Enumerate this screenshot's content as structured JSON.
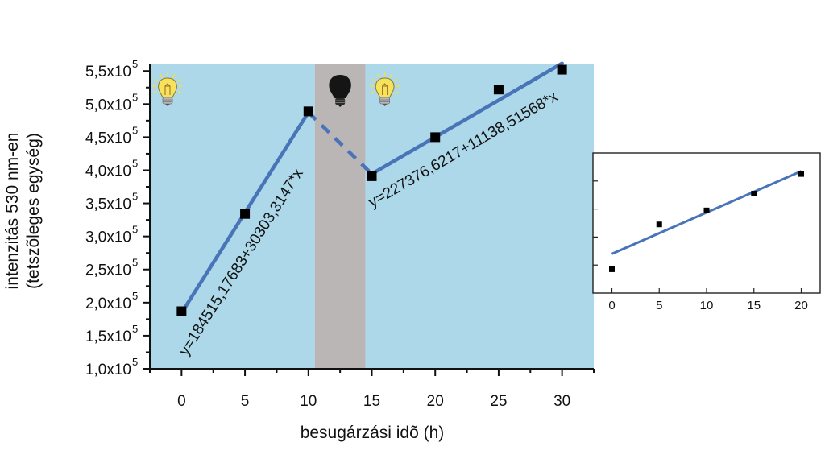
{
  "chart_data": [
    {
      "type": "scatter",
      "title": "",
      "xlabel": "besugárzási idõ (h)",
      "ylabel_line1": "intenzitás 530 nm-en",
      "ylabel_line2": "(tetszõleges egység)",
      "xlim": [
        -2.5,
        32.5
      ],
      "ylim": [
        100000,
        560000
      ],
      "xticks": [
        0,
        5,
        10,
        15,
        20,
        25,
        30
      ],
      "yticks": [
        {
          "value": 100000,
          "mantissa": "1,0x10",
          "exp": "5"
        },
        {
          "value": 150000,
          "mantissa": "1,5x10",
          "exp": "5"
        },
        {
          "value": 200000,
          "mantissa": "2,0x10",
          "exp": "5"
        },
        {
          "value": 250000,
          "mantissa": "2,5x10",
          "exp": "5"
        },
        {
          "value": 300000,
          "mantissa": "3,0x10",
          "exp": "5"
        },
        {
          "value": 350000,
          "mantissa": "3,5x10",
          "exp": "5"
        },
        {
          "value": 400000,
          "mantissa": "4,0x10",
          "exp": "5"
        },
        {
          "value": 450000,
          "mantissa": "4,5x10",
          "exp": "5"
        },
        {
          "value": 500000,
          "mantissa": "5,0x10",
          "exp": "5"
        },
        {
          "value": 550000,
          "mantissa": "5,5x10",
          "exp": "5"
        }
      ],
      "regions": [
        {
          "x0": -2.5,
          "x1": 10.5,
          "color": "#acd8ea",
          "icon": "light-bulb-on-icon"
        },
        {
          "x0": 10.5,
          "x1": 14.5,
          "color": "#bbb6b6",
          "icon": "light-bulb-off-icon"
        },
        {
          "x0": 14.5,
          "x1": 32.5,
          "color": "#acd8ea",
          "icon": "light-bulb-on-icon"
        }
      ],
      "points": [
        {
          "x": 0,
          "y": 187000
        },
        {
          "x": 5,
          "y": 334000
        },
        {
          "x": 10,
          "y": 489000
        },
        {
          "x": 15,
          "y": 391000
        },
        {
          "x": 20,
          "y": 450000
        },
        {
          "x": 25,
          "y": 522000
        },
        {
          "x": 30,
          "y": 552000
        }
      ],
      "fits": [
        {
          "x": [
            0,
            10
          ],
          "y": [
            184515,
            487548
          ],
          "style": "solid",
          "equation": "y=184515,17683+30303,3147*x"
        },
        {
          "x": [
            10,
            15
          ],
          "y": [
            487548,
            394459
          ],
          "style": "dashed",
          "equation": ""
        },
        {
          "x": [
            15,
            30
          ],
          "y": [
            394459,
            561536
          ],
          "style": "solid",
          "equation": "y=227376,6217+11138,51568*x"
        }
      ],
      "point_color": "#000000",
      "line_color": "#4a74b8",
      "grid": false
    },
    {
      "type": "scatter",
      "title": "",
      "xticks": [
        0,
        5,
        10,
        15,
        20
      ],
      "xlim": [
        -2,
        22
      ],
      "ylim": [
        0,
        1
      ],
      "ytick_values": [
        0.2,
        0.4,
        0.6,
        0.8
      ],
      "points": [
        {
          "x": 0,
          "y": 0.17
        },
        {
          "x": 5,
          "y": 0.49
        },
        {
          "x": 10,
          "y": 0.59
        },
        {
          "x": 15,
          "y": 0.71
        },
        {
          "x": 20,
          "y": 0.85
        }
      ],
      "fit": {
        "x": [
          0,
          20
        ],
        "y": [
          0.28,
          0.87
        ]
      },
      "point_color": "#000000",
      "line_color": "#4a74b8",
      "grid": false
    }
  ]
}
